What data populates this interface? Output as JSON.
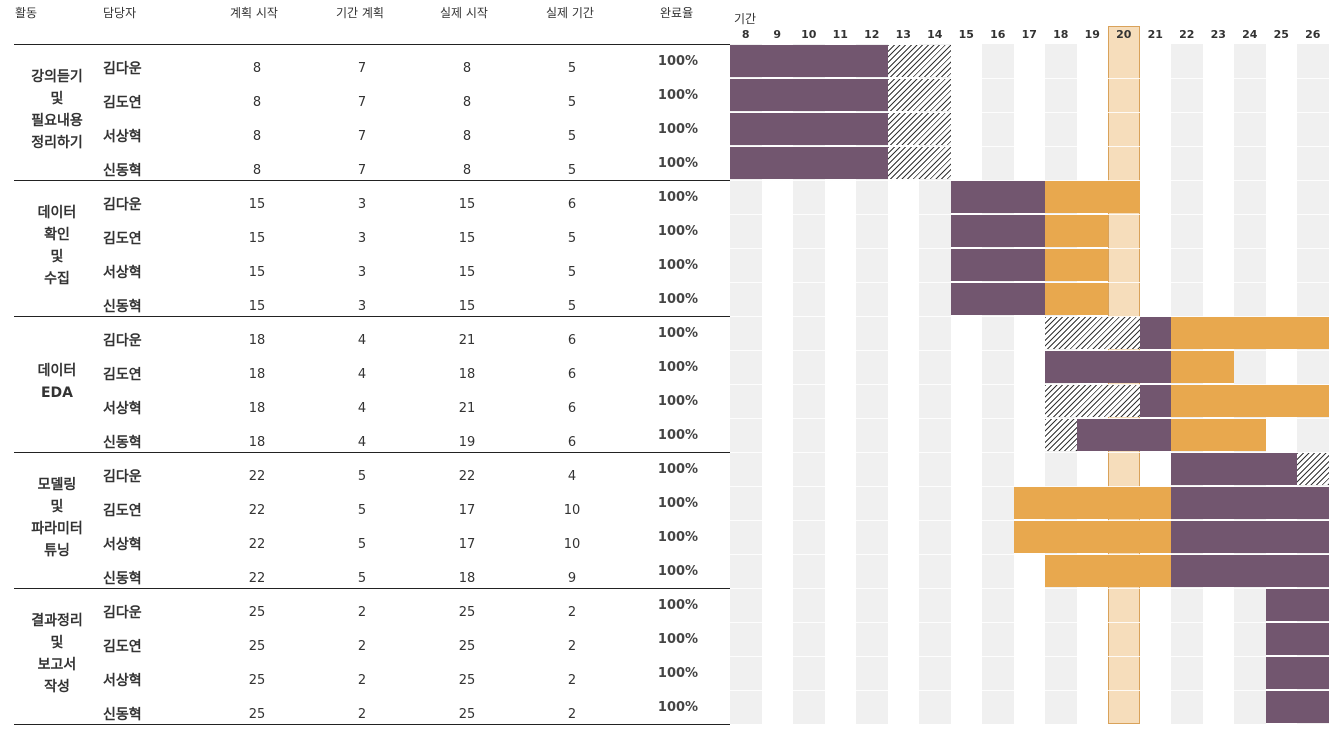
{
  "headers": {
    "activity": "활동",
    "owner": "담당자",
    "plan_start": "계획 시작",
    "plan_duration": "기간 계획",
    "actual_start": "실제 시작",
    "actual_duration": "실제 기간",
    "completion": "완료율",
    "period": "기간"
  },
  "days": [
    "8",
    "9",
    "10",
    "11",
    "12",
    "13",
    "14",
    "15",
    "16",
    "17",
    "18",
    "19",
    "20",
    "21",
    "22",
    "23",
    "24",
    "25",
    "26"
  ],
  "highlight_day": "20",
  "colors": {
    "plan": "#72566F",
    "actual": "#E8A84E",
    "highlight_fill": "#F6DDBB",
    "highlight_border": "#D9A25A",
    "stripe": "#F0F0F0"
  },
  "activities": [
    {
      "label": "강의듣기\n및\n필요내용\n정리하기",
      "rows": [
        {
          "name": "김다운",
          "plan_start": "8",
          "plan_duration": "7",
          "actual_start": "8",
          "actual_duration": "5",
          "completion": "100%"
        },
        {
          "name": "김도연",
          "plan_start": "8",
          "plan_duration": "7",
          "actual_start": "8",
          "actual_duration": "5",
          "completion": "100%"
        },
        {
          "name": "서상혁",
          "plan_start": "8",
          "plan_duration": "7",
          "actual_start": "8",
          "actual_duration": "5",
          "completion": "100%"
        },
        {
          "name": "신동혁",
          "plan_start": "8",
          "plan_duration": "7",
          "actual_start": "8",
          "actual_duration": "5",
          "completion": "100%"
        }
      ]
    },
    {
      "label": "데이터\n확인\n및\n수집",
      "rows": [
        {
          "name": "김다운",
          "plan_start": "15",
          "plan_duration": "3",
          "actual_start": "15",
          "actual_duration": "6",
          "completion": "100%"
        },
        {
          "name": "김도연",
          "plan_start": "15",
          "plan_duration": "3",
          "actual_start": "15",
          "actual_duration": "5",
          "completion": "100%"
        },
        {
          "name": "서상혁",
          "plan_start": "15",
          "plan_duration": "3",
          "actual_start": "15",
          "actual_duration": "5",
          "completion": "100%"
        },
        {
          "name": "신동혁",
          "plan_start": "15",
          "plan_duration": "3",
          "actual_start": "15",
          "actual_duration": "5",
          "completion": "100%"
        }
      ]
    },
    {
      "label": "데이터\nEDA",
      "rows": [
        {
          "name": "김다운",
          "plan_start": "18",
          "plan_duration": "4",
          "actual_start": "21",
          "actual_duration": "6",
          "completion": "100%"
        },
        {
          "name": "김도연",
          "plan_start": "18",
          "plan_duration": "4",
          "actual_start": "18",
          "actual_duration": "6",
          "completion": "100%"
        },
        {
          "name": "서상혁",
          "plan_start": "18",
          "plan_duration": "4",
          "actual_start": "21",
          "actual_duration": "6",
          "completion": "100%"
        },
        {
          "name": "신동혁",
          "plan_start": "18",
          "plan_duration": "4",
          "actual_start": "19",
          "actual_duration": "6",
          "completion": "100%"
        }
      ]
    },
    {
      "label": "모델링\n및\n파라미터\n튜닝",
      "rows": [
        {
          "name": "김다운",
          "plan_start": "22",
          "plan_duration": "5",
          "actual_start": "22",
          "actual_duration": "4",
          "completion": "100%"
        },
        {
          "name": "김도연",
          "plan_start": "22",
          "plan_duration": "5",
          "actual_start": "17",
          "actual_duration": "10",
          "completion": "100%"
        },
        {
          "name": "서상혁",
          "plan_start": "22",
          "plan_duration": "5",
          "actual_start": "17",
          "actual_duration": "10",
          "completion": "100%"
        },
        {
          "name": "신동혁",
          "plan_start": "22",
          "plan_duration": "5",
          "actual_start": "18",
          "actual_duration": "9",
          "completion": "100%"
        }
      ]
    },
    {
      "label": "결과정리\n및\n보고서\n작성",
      "rows": [
        {
          "name": "김다운",
          "plan_start": "25",
          "plan_duration": "2",
          "actual_start": "25",
          "actual_duration": "2",
          "completion": "100%"
        },
        {
          "name": "김도연",
          "plan_start": "25",
          "plan_duration": "2",
          "actual_start": "25",
          "actual_duration": "2",
          "completion": "100%"
        },
        {
          "name": "서상혁",
          "plan_start": "25",
          "plan_duration": "2",
          "actual_start": "25",
          "actual_duration": "2",
          "completion": "100%"
        },
        {
          "name": "신동혁",
          "plan_start": "25",
          "plan_duration": "2",
          "actual_start": "25",
          "actual_duration": "2",
          "completion": "100%"
        }
      ]
    }
  ]
}
